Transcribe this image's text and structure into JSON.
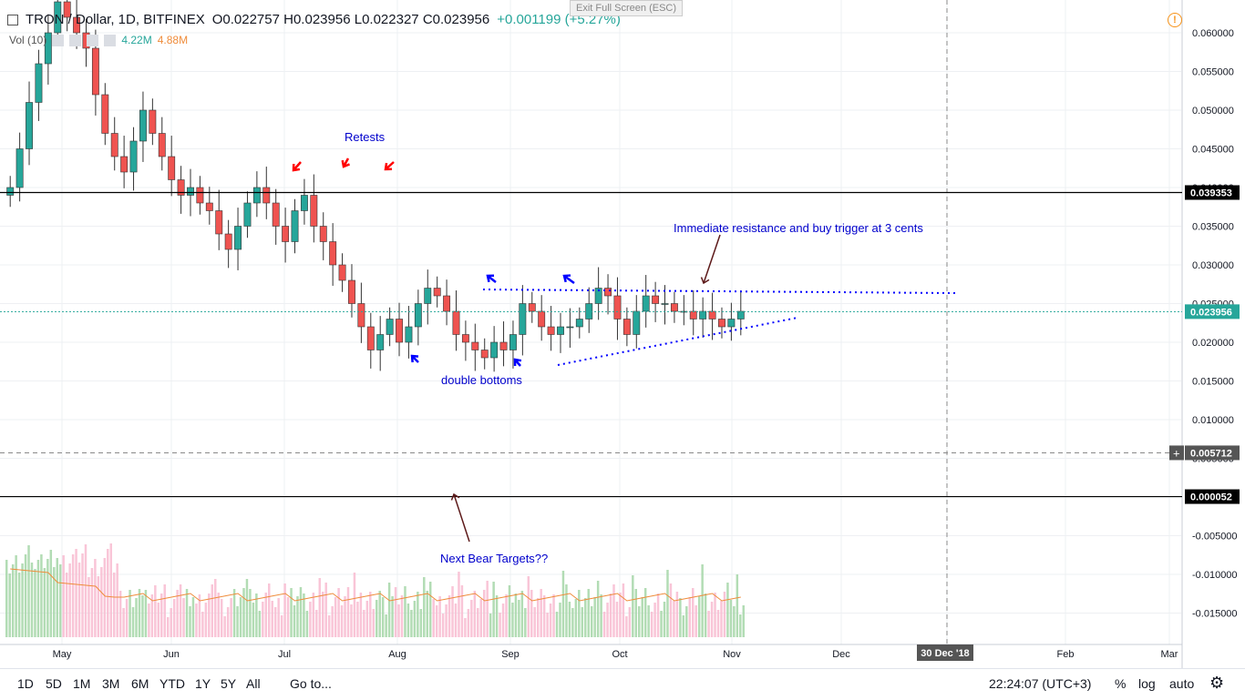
{
  "header": {
    "symbol": "TRON / Dollar, 1D, BITFINEX",
    "open_label": "O",
    "open": "0.022757",
    "high_label": "H",
    "high": "0.023956",
    "low_label": "L",
    "low": "0.022327",
    "close_label": "C",
    "close": "0.023956",
    "change": "+0.001199 (+5.27%)"
  },
  "volume": {
    "label": "Vol (10)",
    "value": "4.22M",
    "ma_value": "4.88M"
  },
  "exit_fullscreen": "Exit Full Screen (ESC)",
  "bottom_bar": {
    "ranges": [
      "1D",
      "5D",
      "1M",
      "3M",
      "6M",
      "YTD",
      "1Y",
      "5Y",
      "All"
    ],
    "goto": "Go to...",
    "clock": "22:24:07 (UTC+3)",
    "percent": "%",
    "log": "log",
    "auto": "auto"
  },
  "colors": {
    "up": "#26a69a",
    "down": "#ef5350",
    "annotation": "#0000cc",
    "arrow_red": "#ff0000",
    "arrow_blue": "#0000ff",
    "arrow_brown": "#5d1a1a",
    "price_tag": "#26a69a"
  },
  "chart_data": {
    "type": "candlestick",
    "title": "TRON / Dollar, 1D, BITFINEX",
    "x_ticks": [
      "May",
      "Jun",
      "Jul",
      "Aug",
      "Sep",
      "Oct",
      "Nov",
      "Dec",
      "30 Dec '18",
      "Feb",
      "Mar"
    ],
    "y_ticks": [
      "0.060000",
      "0.055000",
      "0.050000",
      "0.045000",
      "0.040000",
      "0.035000",
      "0.030000",
      "0.025000",
      "0.020000",
      "0.015000",
      "0.010000",
      "0.005000",
      "0.000000",
      "-0.005000",
      "-0.010000",
      "-0.015000"
    ],
    "ylim": [
      -0.019,
      0.064
    ],
    "price_tags": [
      {
        "value": 0.039353,
        "label": "0.039353",
        "style": "black-line"
      },
      {
        "value": 0.023956,
        "label": "0.023956",
        "style": "last-price"
      },
      {
        "value": 0.005712,
        "label": "0.005712",
        "style": "crosshair"
      },
      {
        "value": 5.2e-05,
        "label": "0.000052",
        "style": "black-line"
      }
    ],
    "crosshair_date": "30 Dec '18",
    "annotations": [
      "Retests",
      "Immediate resistance and buy trigger at 3 cents",
      "double bottoms",
      "Next Bear Targets??"
    ],
    "approx_closes": [
      0.04,
      0.045,
      0.051,
      0.056,
      0.06,
      0.064,
      0.062,
      0.06,
      0.058,
      0.052,
      0.047,
      0.044,
      0.042,
      0.046,
      0.05,
      0.047,
      0.044,
      0.041,
      0.039,
      0.04,
      0.038,
      0.037,
      0.034,
      0.032,
      0.035,
      0.038,
      0.04,
      0.038,
      0.035,
      0.033,
      0.037,
      0.039,
      0.035,
      0.033,
      0.03,
      0.028,
      0.025,
      0.022,
      0.019,
      0.021,
      0.023,
      0.02,
      0.022,
      0.025,
      0.027,
      0.026,
      0.024,
      0.021,
      0.02,
      0.019,
      0.018,
      0.02,
      0.019,
      0.021,
      0.025,
      0.024,
      0.022,
      0.021,
      0.022,
      0.022,
      0.023,
      0.025,
      0.027,
      0.026,
      0.023,
      0.021,
      0.024,
      0.026,
      0.025,
      0.025,
      0.024,
      0.024,
      0.023,
      0.024,
      0.023,
      0.022,
      0.023,
      0.024
    ]
  }
}
